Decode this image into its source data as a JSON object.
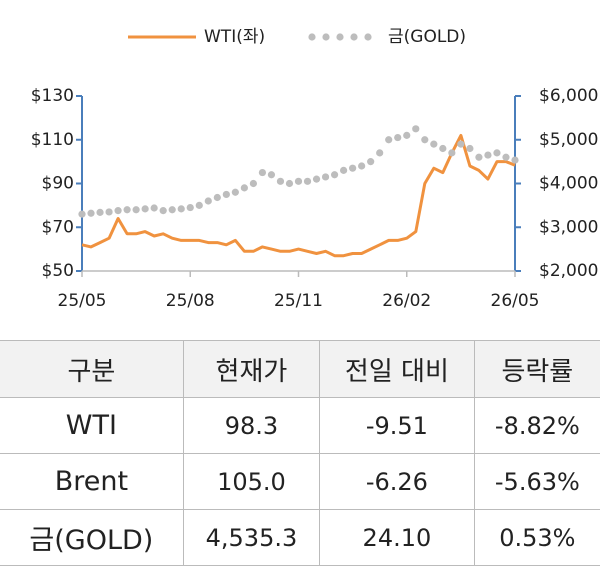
{
  "chart_data": {
    "type": "line",
    "categories": [
      "25/05",
      null,
      null,
      null,
      null,
      null,
      null,
      null,
      null,
      null,
      null,
      null,
      "25/08",
      null,
      null,
      null,
      null,
      null,
      null,
      null,
      null,
      null,
      null,
      null,
      "25/11",
      null,
      null,
      null,
      null,
      null,
      null,
      null,
      null,
      null,
      null,
      null,
      "26/02",
      null,
      null,
      null,
      null,
      null,
      null,
      null,
      null,
      null,
      null,
      null,
      "26/05"
    ],
    "series": [
      {
        "name": "WTI(좌)",
        "color": "#f0923f",
        "style": "line",
        "values": [
          62,
          61,
          63,
          65,
          74,
          67,
          67,
          68,
          66,
          67,
          65,
          64,
          64,
          64,
          63,
          63,
          62,
          64,
          59,
          59,
          61,
          60,
          59,
          59,
          60,
          59,
          58,
          59,
          57,
          57,
          58,
          58,
          60,
          62,
          64,
          64,
          65,
          68,
          90,
          97,
          95,
          104,
          112,
          98,
          96,
          92,
          100,
          100,
          98.3
        ]
      },
      {
        "name": "금(GOLD)",
        "color": "#bdbdbd",
        "style": "dots",
        "axis": "y2",
        "values": [
          3300,
          3320,
          3340,
          3350,
          3380,
          3400,
          3400,
          3420,
          3440,
          3380,
          3400,
          3420,
          3450,
          3500,
          3600,
          3680,
          3750,
          3800,
          3900,
          4000,
          4250,
          4200,
          4050,
          4000,
          4050,
          4050,
          4100,
          4150,
          4200,
          4300,
          4350,
          4400,
          4500,
          4700,
          5000,
          5050,
          5100,
          5250,
          5000,
          4900,
          4800,
          4700,
          4900,
          4800,
          4600,
          4650,
          4700,
          4600,
          4535.3
        ]
      }
    ],
    "ylim": [
      50,
      130
    ],
    "yticks": [
      {
        "value": 50,
        "label": "$50"
      },
      {
        "value": 70,
        "label": "$70"
      },
      {
        "value": 90,
        "label": "$90"
      },
      {
        "value": 110,
        "label": "$110"
      },
      {
        "value": 130,
        "label": "$130"
      }
    ],
    "y2lim": [
      2000,
      6000
    ],
    "y2ticks": [
      {
        "value": 2000,
        "label": "$2,000"
      },
      {
        "value": 3000,
        "label": "$3,000"
      },
      {
        "value": 4000,
        "label": "$4,000"
      },
      {
        "value": 5000,
        "label": "$5,000"
      },
      {
        "value": 6000,
        "label": "$6,000"
      }
    ]
  },
  "table": {
    "header": [
      "구분",
      "현재가",
      "전일 대비",
      "등락률"
    ],
    "rows": [
      [
        "WTI",
        "98.3",
        "-9.51",
        "-8.82%"
      ],
      [
        "Brent",
        "105.0",
        "-6.26",
        "-5.63%"
      ],
      [
        "금(GOLD)",
        "4,535.3",
        "24.10",
        "0.53%"
      ]
    ]
  }
}
